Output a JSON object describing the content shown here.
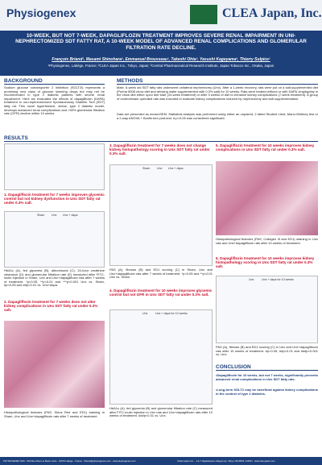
{
  "header": {
    "logo_left": "Physiogenex",
    "logo_right": "CLEA Japan, Inc.",
    "title": "10-WEEK, BUT NOT 7-WEEK, DAPAGLIFLOZIN TREATMENT IMPROVES SEVERE RENAL IMPAIRMENT IN UNI-NEPHRECTOMIZED SDT FATTY RAT, A 10-WEEK MODEL OF ADVANCED RENAL COMPLICATIONS AND GLOMERULAR FILTRATION RATE DECLINE.",
    "authors": "François Briand¹, Masami Shinohara², Emmanuel Brousseau¹, Takeshi Ohta³, Yasushi Kageyama², Thierry Sulpice¹",
    "affiliations": "¹Physiogenex, Labège, France; ²CLEA Japan Inc., Tokyo, Japan; ³Central Pharmaceutical Research Institute, Japan Tobacco Inc., Osaka, Japan"
  },
  "background": {
    "heading": "BACKGROUND",
    "text": "Sodium glucose cotransporter 2 inhibition (SGLT2i) represents a promising new class of glucose lowering drugs but may not be recommended in type 2 diabetic patients with severe renal impairment. Here we evaluated the effects of dapagliflozin (DAPA) treatment in uni-nephrectomized Spontaneously Diabetic Torii (SDT) fatty rat. This novel hypertensive, obese, type 2 diabetic model, develops advanced renal complications and >50% glomerular filtration rate (GFR) decline within 10 weeks."
  },
  "methods": {
    "heading": "METHODS",
    "text": "Male, 6-week old SDT fatty rats underwent unilateral nephrectomy (Unx). After a 1-week recovery, rats were put on a salt-supplemented diet (Purina 5008 chow diet and drinking water supplemented with 0.3% salt) for 10 weeks. Rats were treated without or with DAPA 1mg/kg/day in the chow diet either upon diet start (10-week treatment) or after 3 weeks of diet to enhance kidney complications (7-week treatment). A group of control/sham operated rats was included to evaluate kidney complications induced by nephrectomy and salt supplementation.",
    "stats": "Data are presented as mean±SEM. Statistical analysis was performed using either an unpaired, 2 tailed Student t-test, Mann-Whitney test or a 2-way ANOVA + Bonferroni post-test. A p<0.05 was considered significant."
  },
  "results": {
    "heading": "RESULTS",
    "panels": [
      {
        "title": "1. Dapagliflozin treatment for 7 weeks improves glycemic control but not kidney dysfunction in Unx SDT fatty rat under 0.3% salt.",
        "caption": "HbA1c (A), fed glycemia (B), albuminuria (C), 24-hour creatinine clearance (D) and glomerular filtration rate (E) measured after FITC-inulin injection in Sham, Unx and Unx+dapagliflozin rats after 7 weeks of treatment. *p<0.05, **p<0.01 and ***p<0.001 Unx vs. Sham, #p<0.05 and ##p<0.01 vs. Unx+dapa."
      },
      {
        "title": "2. Dapagliflozin treatment for 7 weeks does not alter kidney complications in Unx SDT fatty rat under 0.3% salt.",
        "caption": "Histopathological features (PAS, Sirius Red and ED1) staining in Sham, Unx and Unx+dapagliflozin rats after 7 weeks of treatment."
      },
      {
        "title": "3. Dapagliflozin treatment for 7 weeks does not change kidney histopathology scoring in Unx SDT fatty rat under 0.3% salt.",
        "caption": "PAS (A), fibrosis (B) and ED1 scoring (C) in Sham, Unx and Unx+dapagliflozin rats after 7 weeks of treatment. *p<0.05 and **p<0.01 Unx vs. Sham."
      },
      {
        "title": "4. Dapagliflozin treatment for 10 weeks improves glycemic control but not GFR in Unx SDT fatty rat under 0.3% salt.",
        "caption": "HbA1c (A), fed glycemia (B) and glomerular filtration rate (C) measured after FITC-inulin injection in Unx rats and Unx+dapagliflozin rats after 10 weeks of treatment. ###p<0.01 vs. Unx."
      },
      {
        "title": "5. Dapagliflozin treatment for 10 weeks improves kidney complications in Unx SDT fatty rat under 0.3% salt.",
        "caption": "Histopathological features (PAS, Collagen III and ED1) staining in Unx rats and Unx+dapagliflozin rats after 10 weeks of treatment."
      },
      {
        "title": "6. Dapagliflozin treatment for 10 weeks improves kidney histopathology scoring in Unx SDT fatty rat under 0.3% salt.",
        "caption": "PAS (A), fibrosis (B) and ED1 scoring (C) in Unx and Unx+dapagliflozin rats after 10 weeks of treatment. #p<0.05, ##p<0.01 and ###p<0.001 vs. Unx."
      }
    ],
    "legend_7w": [
      "Sham",
      "Unx",
      "Unx + dapa"
    ],
    "legend_10w": [
      "Unx",
      "Unx + dapa for 10 weeks"
    ]
  },
  "conclusion": {
    "heading": "CONCLUSION",
    "bullets": [
      "•Dapagliflozin for 10 weeks, but not 7 weeks, significantly prevents advanced renal complications in Unx SDT fatty rats.",
      "•Long-term SGLT2 may be beneficial against kidney complications in the context of type 2 diabetes."
    ]
  },
  "footer": {
    "left": "PHYSIOGENEX SAS · 516 Rue Pierre et Marie Curie · 31670 Labège · France · fbriand@physiogenex.com · www.physiogenex.com",
    "right": "CLEA Japan Inc. · 1-2-7 Higashiyama, Meguro-ku, Tokyo 153-8533, JAPAN · www.clea-japan.com"
  }
}
